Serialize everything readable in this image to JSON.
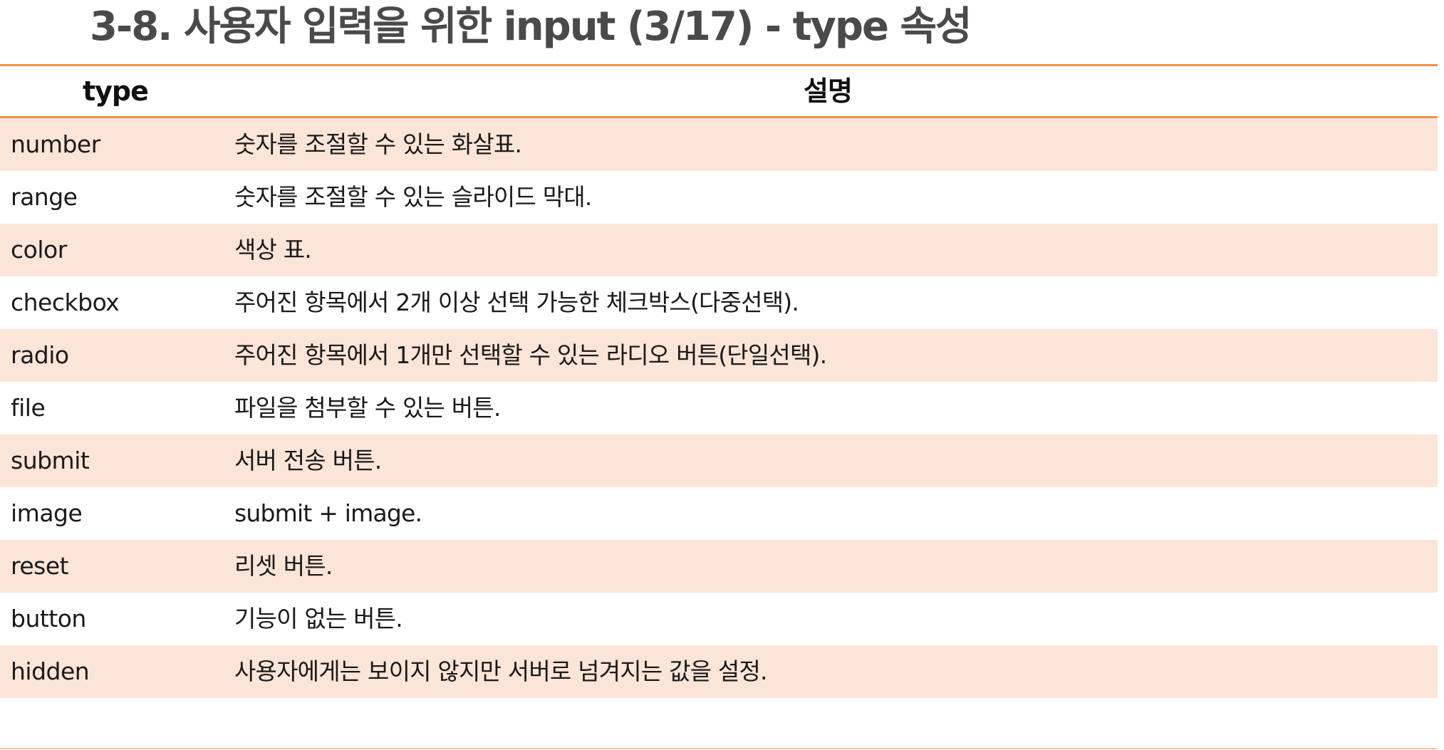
{
  "slide": {
    "title": "3-8. 사용자 입력을 위한 input (3/17) - type 속성"
  },
  "table": {
    "headers": {
      "type": "type",
      "description": "설명"
    },
    "rows": [
      {
        "type": "number",
        "description": "숫자를 조절할 수 있는 화살표."
      },
      {
        "type": "range",
        "description": "숫자를 조절할 수 있는 슬라이드 막대."
      },
      {
        "type": "color",
        "description": "색상 표."
      },
      {
        "type": "checkbox",
        "description": "주어진 항목에서 2개 이상 선택 가능한 체크박스(다중선택)."
      },
      {
        "type": "radio",
        "description": "주어진 항목에서 1개만 선택할 수 있는 라디오 버튼(단일선택)."
      },
      {
        "type": "file",
        "description": "파일을 첨부할 수 있는 버튼."
      },
      {
        "type": "submit",
        "description": "서버 전송 버튼."
      },
      {
        "type": "image",
        "description": "submit + image."
      },
      {
        "type": "reset",
        "description": "리셋 버튼."
      },
      {
        "type": "button",
        "description": "기능이 없는 버튼."
      },
      {
        "type": "hidden",
        "description": "사용자에게는 보이지 않지만 서버로 넘겨지는 값을 설정."
      }
    ]
  },
  "colors": {
    "accent_rule": "#f0914a",
    "row_shade": "#fbe4d8",
    "title_text": "#4a4a4a"
  }
}
